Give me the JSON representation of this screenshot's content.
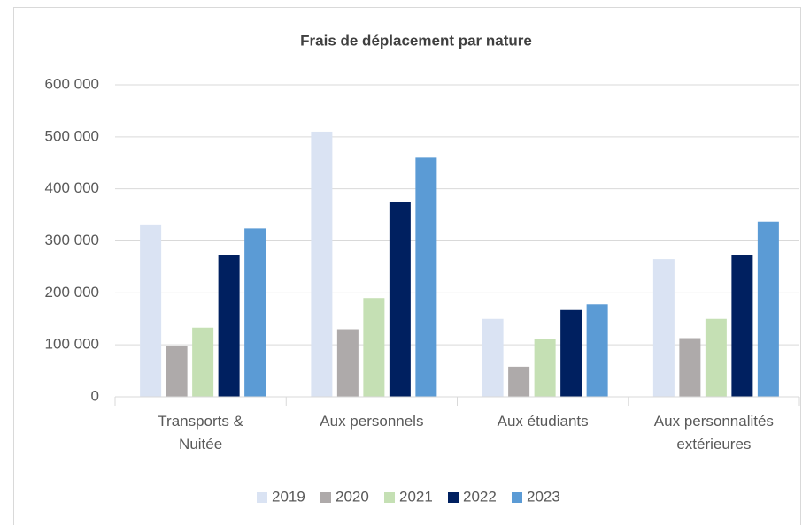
{
  "chart_data": {
    "type": "bar",
    "title": "Frais de déplacement par nature",
    "categories": [
      "Transports & Nuitée",
      "Aux personnels",
      "Aux étudiants",
      "Aux personnalités extérieures"
    ],
    "series": [
      {
        "name": "2019",
        "color": "#dae3f3",
        "values": [
          330000,
          510000,
          150000,
          265000
        ]
      },
      {
        "name": "2020",
        "color": "#aeaaaa",
        "values": [
          98000,
          130000,
          58000,
          113000
        ]
      },
      {
        "name": "2021",
        "color": "#c5e0b4",
        "values": [
          133000,
          190000,
          112000,
          150000
        ]
      },
      {
        "name": "2022",
        "color": "#002060",
        "values": [
          273000,
          375000,
          167000,
          273000
        ]
      },
      {
        "name": "2023",
        "color": "#5b9bd5",
        "values": [
          324000,
          460000,
          178000,
          337000
        ]
      }
    ],
    "ylim": [
      0,
      600000
    ],
    "yticks": [
      0,
      {
        "value": 100000,
        "label": "100 000"
      },
      {
        "value": 200000,
        "label": "200 000"
      },
      {
        "value": 300000,
        "label": "300 000"
      },
      {
        "value": 400000,
        "label": "400 000"
      },
      {
        "value": 500000,
        "label": "500 000"
      },
      {
        "value": 600000,
        "label": "600 000"
      }
    ],
    "grid": true,
    "legend": "bottom"
  }
}
